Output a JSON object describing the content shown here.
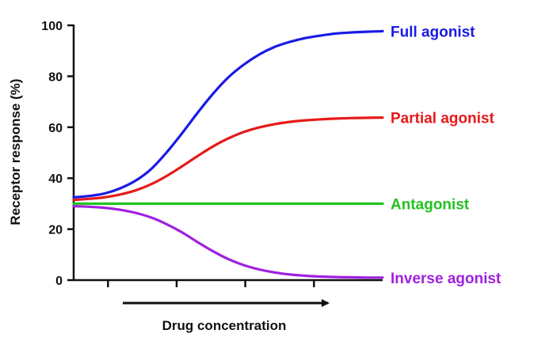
{
  "chart_data": {
    "type": "line",
    "xlabel": "Drug concentration",
    "ylabel": "Receptor response (%)",
    "ylim": [
      0,
      100
    ],
    "yticks": [
      0,
      20,
      40,
      60,
      80,
      100
    ],
    "x_ticks_count": 4,
    "x_arrow": true,
    "legend_placement": "right-inline",
    "grid": false,
    "x": [
      0,
      0.05,
      0.1,
      0.15,
      0.2,
      0.25,
      0.3,
      0.35,
      0.4,
      0.45,
      0.5,
      0.55,
      0.6,
      0.65,
      0.7,
      0.75,
      0.8,
      0.85,
      0.9,
      0.95,
      1
    ],
    "series": [
      {
        "name": "Full agonist",
        "color": "#1a1ae6",
        "values": [
          32.5,
          33.0,
          34.0,
          36.0,
          39.0,
          43.5,
          50.0,
          57.5,
          65.5,
          73.0,
          79.5,
          84.5,
          88.5,
          91.5,
          93.5,
          95.0,
          96.0,
          96.8,
          97.2,
          97.5,
          97.7
        ]
      },
      {
        "name": "Partial agonist",
        "color": "#e61a1a",
        "values": [
          31.5,
          31.9,
          32.5,
          33.6,
          35.2,
          37.6,
          40.8,
          44.6,
          48.6,
          52.4,
          55.6,
          58.1,
          59.9,
          61.2,
          62.1,
          62.7,
          63.1,
          63.4,
          63.6,
          63.7,
          63.8
        ]
      },
      {
        "name": "Antagonist",
        "color": "#22c322",
        "values": [
          30,
          30,
          30,
          30,
          30,
          30,
          30,
          30,
          30,
          30,
          30,
          30,
          30,
          30,
          30,
          30,
          30,
          30,
          30,
          30,
          30
        ]
      },
      {
        "name": "Inverse agonist",
        "color": "#a020e0",
        "values": [
          29,
          28.8,
          28.4,
          27.6,
          26.4,
          24.6,
          22.0,
          18.8,
          15.0,
          11.4,
          8.3,
          5.9,
          4.2,
          3.0,
          2.2,
          1.7,
          1.4,
          1.2,
          1.1,
          1.0,
          1.0
        ]
      }
    ]
  }
}
